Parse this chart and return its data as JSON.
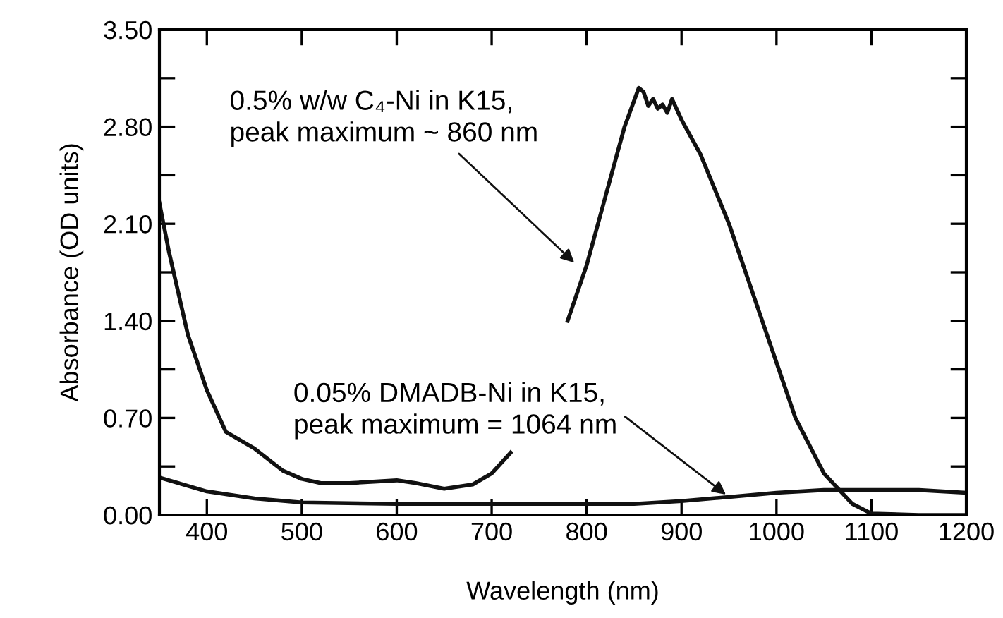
{
  "chart_data": {
    "type": "line",
    "xlabel": "Wavelength (nm)",
    "ylabel": "Absorbance (OD units)",
    "xlim": [
      350,
      1200
    ],
    "xticks": [
      400,
      500,
      600,
      700,
      800,
      900,
      1000,
      1100,
      1200
    ],
    "ylim": [
      0,
      3.5
    ],
    "yticks": [
      {
        "value": 0,
        "label": "0.00"
      },
      {
        "value": 0.35,
        "label": null
      },
      {
        "value": 0.7,
        "label": "0.70"
      },
      {
        "value": 1.05,
        "label": null
      },
      {
        "value": 1.4,
        "label": "1.40"
      },
      {
        "value": 1.75,
        "label": null
      },
      {
        "value": 2.1,
        "label": "2.10"
      },
      {
        "value": 2.45,
        "label": null
      },
      {
        "value": 2.8,
        "label": "2.80"
      },
      {
        "value": 3.15,
        "label": null
      },
      {
        "value": 3.5,
        "label": "3.50"
      }
    ],
    "grid": false,
    "marker": "none",
    "line_style": "solid",
    "series": [
      {
        "color": "#111111",
        "x": [
          350,
          360,
          380,
          400,
          420,
          450,
          480,
          500,
          520,
          550,
          600,
          620,
          650,
          680,
          700,
          720,
          750,
          780,
          800,
          820,
          840,
          855,
          860,
          865,
          870,
          875,
          880,
          885,
          890,
          900,
          920,
          950,
          980,
          1000,
          1020,
          1050,
          1080,
          1100,
          1150,
          1200
        ],
        "values": [
          2.25,
          1.9,
          1.3,
          0.9,
          0.6,
          0.48,
          0.32,
          0.26,
          0.23,
          0.23,
          0.25,
          0.23,
          0.19,
          0.22,
          0.3,
          0.45,
          null,
          1.4,
          1.8,
          2.3,
          2.8,
          3.08,
          3.05,
          2.95,
          3.0,
          2.93,
          2.96,
          2.9,
          3.0,
          2.85,
          2.6,
          2.1,
          1.5,
          1.1,
          0.7,
          0.3,
          0.08,
          0.01,
          0.0,
          0.0
        ]
      },
      {
        "color": "#111111",
        "x": [
          350,
          400,
          450,
          500,
          600,
          700,
          800,
          850,
          900,
          950,
          1000,
          1050,
          1100,
          1150,
          1200
        ],
        "values": [
          0.27,
          0.17,
          0.12,
          0.09,
          0.08,
          0.08,
          0.08,
          0.08,
          0.1,
          0.13,
          0.16,
          0.18,
          0.18,
          0.18,
          0.16
        ]
      }
    ],
    "annotations": [
      {
        "text": "0.5% w/w C₄-Ni in K15,\npeak maximum ~ 860 nm",
        "x": 790,
        "y": 1.8
      },
      {
        "text": "0.05% DMADB-Ni in K15,\npeak maximum = 1064 nm",
        "x": 950,
        "y": 0.13
      }
    ]
  }
}
